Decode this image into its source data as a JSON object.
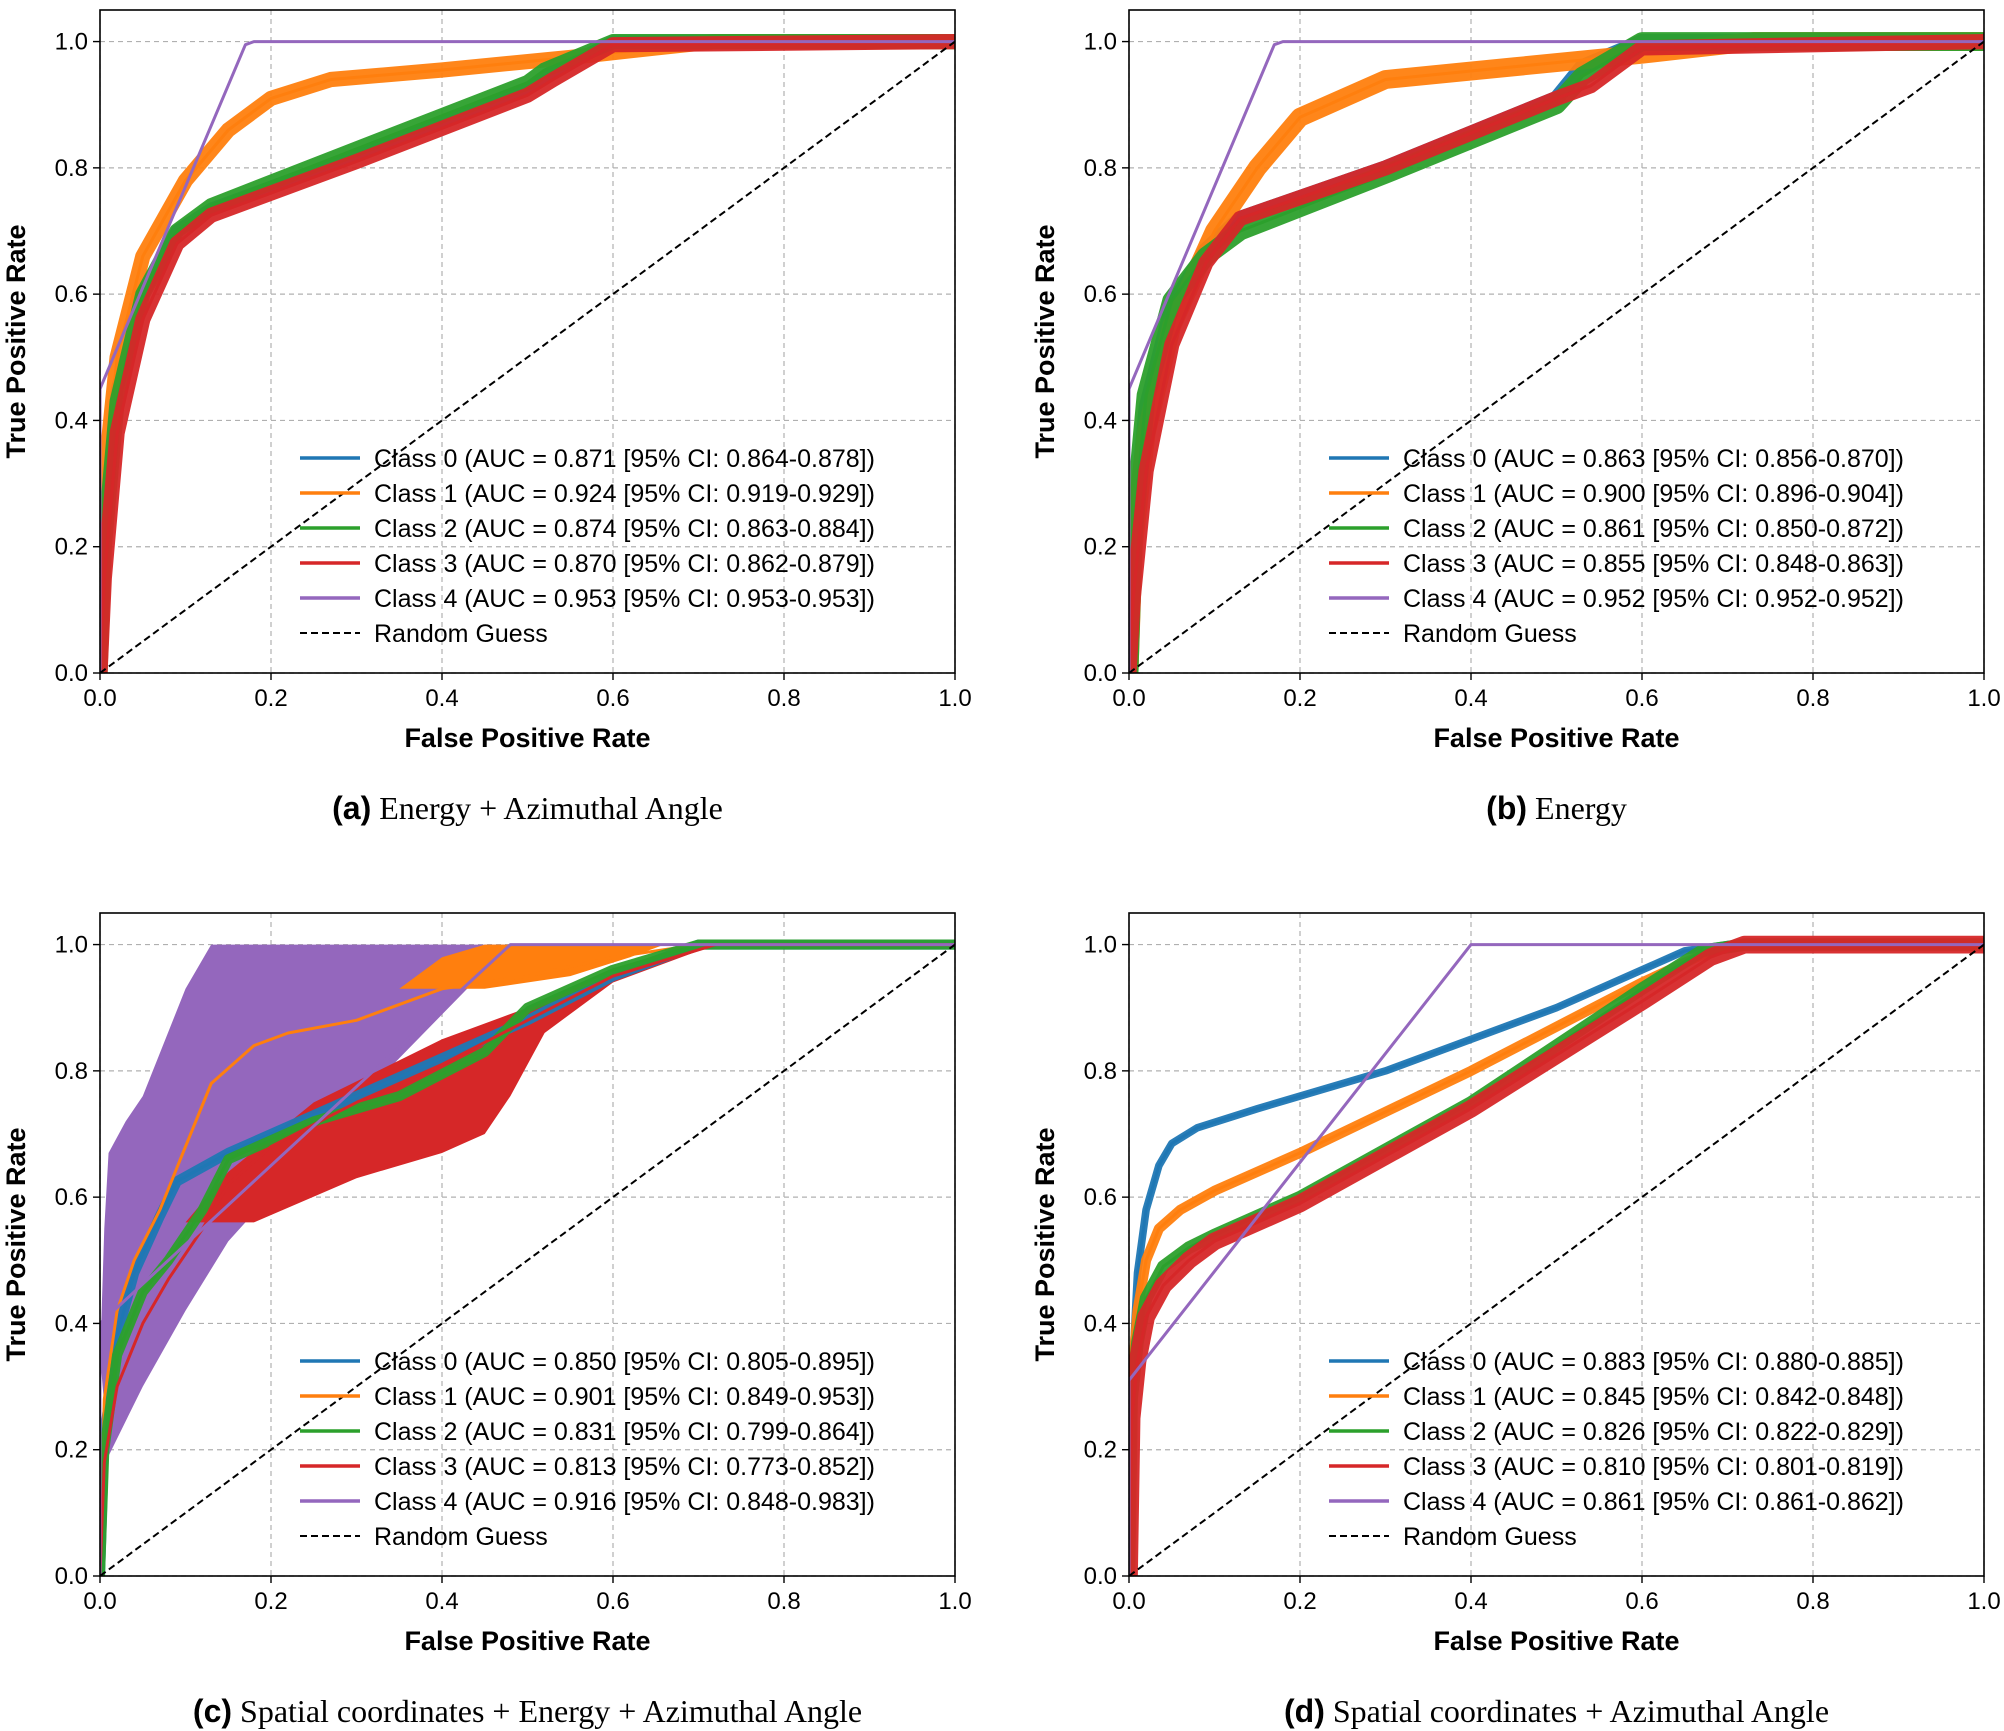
{
  "figure": {
    "x_label": "False Positive Rate",
    "y_label": "True Positive Rate",
    "random_label": "Random Guess"
  },
  "colors": {
    "class_0": "#1f77b4",
    "class_1": "#ff7f0e",
    "class_2": "#2ca02c",
    "class_3": "#d62728",
    "class_4": "#9467bd",
    "random": "#000000"
  },
  "chart_data": [
    {
      "type": "line",
      "caption_letter": "(a)",
      "caption_text": "Energy + Azimuthal Angle",
      "xlabel": "False Positive Rate",
      "ylabel": "True Positive Rate",
      "xlim": [
        0,
        1
      ],
      "ylim": [
        0,
        1.05
      ],
      "xticks": [
        "0.0",
        "0.2",
        "0.4",
        "0.6",
        "0.8",
        "1.0"
      ],
      "yticks": [
        "0.0",
        "0.2",
        "0.4",
        "0.6",
        "0.8",
        "1.0"
      ],
      "grid": true,
      "legend_position": "lower-right",
      "series": [
        {
          "name": "Class 0 (AUC = 0.871 [95% CI: 0.864-0.878])",
          "band": 0.01,
          "x": [
            0,
            0.005,
            0.02,
            0.05,
            0.09,
            0.13,
            0.3,
            0.5,
            0.52,
            0.6,
            1.0
          ],
          "y": [
            0,
            0.22,
            0.45,
            0.6,
            0.7,
            0.735,
            0.82,
            0.925,
            0.945,
            1.0,
            1.0
          ]
        },
        {
          "name": "Class 1 (AUC = 0.924 [95% CI: 0.919-0.929])",
          "band": 0.012,
          "x": [
            0,
            0.005,
            0.02,
            0.05,
            0.1,
            0.15,
            0.2,
            0.27,
            0.4,
            0.55,
            0.65,
            0.72,
            1.0
          ],
          "y": [
            0,
            0.3,
            0.5,
            0.66,
            0.78,
            0.86,
            0.91,
            0.94,
            0.955,
            0.975,
            0.99,
            1.0,
            1.0
          ]
        },
        {
          "name": "Class 2 (AUC = 0.874 [95% CI: 0.863-0.884])",
          "band": 0.012,
          "x": [
            0,
            0.005,
            0.02,
            0.05,
            0.09,
            0.13,
            0.3,
            0.5,
            0.52,
            0.6,
            1.0
          ],
          "y": [
            0,
            0.2,
            0.43,
            0.6,
            0.7,
            0.74,
            0.83,
            0.935,
            0.955,
            1.0,
            1.0
          ]
        },
        {
          "name": "Class 3 (AUC = 0.870 [95% CI: 0.862-0.879])",
          "band": 0.012,
          "x": [
            0,
            0.005,
            0.02,
            0.05,
            0.09,
            0.13,
            0.3,
            0.5,
            0.53,
            0.6,
            1.0
          ],
          "y": [
            0,
            0.15,
            0.38,
            0.56,
            0.68,
            0.725,
            0.81,
            0.915,
            0.94,
            0.995,
            1.0
          ]
        },
        {
          "name": "Class 4 (AUC = 0.953 [95% CI: 0.953-0.953])",
          "band": 0,
          "x": [
            0,
            0,
            0.17,
            0.18,
            1.0
          ],
          "y": [
            0,
            0.45,
            0.995,
            1.0,
            1.0
          ]
        }
      ]
    },
    {
      "type": "line",
      "caption_letter": "(b)",
      "caption_text": "Energy",
      "xlabel": "False Positive Rate",
      "ylabel": "True Positive Rate",
      "xlim": [
        0,
        1
      ],
      "ylim": [
        0,
        1.05
      ],
      "xticks": [
        "0.0",
        "0.2",
        "0.4",
        "0.6",
        "0.8",
        "1.0"
      ],
      "yticks": [
        "0.0",
        "0.2",
        "0.4",
        "0.6",
        "0.8",
        "1.0"
      ],
      "grid": true,
      "legend_position": "lower-right",
      "series": [
        {
          "name": "Class 0 (AUC = 0.863 [95% CI: 0.856-0.870])",
          "band": 0.012,
          "x": [
            0,
            0.005,
            0.02,
            0.05,
            0.09,
            0.13,
            0.3,
            0.5,
            0.53,
            0.6,
            1.0
          ],
          "y": [
            0,
            0.2,
            0.42,
            0.58,
            0.67,
            0.72,
            0.8,
            0.91,
            0.96,
            1.0,
            1.0
          ]
        },
        {
          "name": "Class 1 (AUC = 0.900 [95% CI: 0.896-0.904])",
          "band": 0.015,
          "x": [
            0,
            0.005,
            0.02,
            0.05,
            0.1,
            0.15,
            0.2,
            0.3,
            0.45,
            0.6,
            0.73,
            1.0
          ],
          "y": [
            0,
            0.2,
            0.38,
            0.55,
            0.7,
            0.8,
            0.88,
            0.94,
            0.96,
            0.98,
            1.0,
            1.0
          ]
        },
        {
          "name": "Class 2 (AUC = 0.861 [95% CI: 0.850-0.872])",
          "band": 0.015,
          "x": [
            0,
            0.005,
            0.02,
            0.05,
            0.09,
            0.13,
            0.3,
            0.5,
            0.53,
            0.6,
            1.0
          ],
          "y": [
            0,
            0.22,
            0.44,
            0.59,
            0.66,
            0.7,
            0.79,
            0.9,
            0.945,
            1.0,
            1.0
          ]
        },
        {
          "name": "Class 3 (AUC = 0.855 [95% CI: 0.848-0.863])",
          "band": 0.012,
          "x": [
            0,
            0.005,
            0.02,
            0.05,
            0.09,
            0.13,
            0.3,
            0.5,
            0.54,
            0.6,
            1.0
          ],
          "y": [
            0,
            0.12,
            0.32,
            0.52,
            0.65,
            0.72,
            0.8,
            0.91,
            0.93,
            0.99,
            1.0
          ]
        },
        {
          "name": "Class 4 (AUC = 0.952 [95% CI: 0.952-0.952])",
          "band": 0,
          "x": [
            0,
            0,
            0.17,
            0.18,
            1.0
          ],
          "y": [
            0,
            0.45,
            0.995,
            1.0,
            1.0
          ]
        }
      ]
    },
    {
      "type": "line",
      "caption_letter": "(c)",
      "caption_text": "Spatial coordinates + Energy + Azimuthal Angle",
      "xlabel": "False Positive Rate",
      "ylabel": "True Positive Rate",
      "xlim": [
        0,
        1
      ],
      "ylim": [
        0,
        1.05
      ],
      "xticks": [
        "0.0",
        "0.2",
        "0.4",
        "0.6",
        "0.8",
        "1.0"
      ],
      "yticks": [
        "0.0",
        "0.2",
        "0.4",
        "0.6",
        "0.8",
        "1.0"
      ],
      "grid": true,
      "legend_position": "lower-right",
      "band_order": [
        4,
        3,
        1,
        0,
        2
      ],
      "series": [
        {
          "name": "Class 0 (AUC = 0.850 [95% CI: 0.805-0.895])",
          "band": 0.008,
          "x": [
            0,
            0.005,
            0.02,
            0.04,
            0.07,
            0.09,
            0.15,
            0.25,
            0.4,
            0.5,
            0.6,
            0.7,
            1.0
          ],
          "y": [
            0,
            0.22,
            0.38,
            0.48,
            0.57,
            0.625,
            0.67,
            0.73,
            0.82,
            0.88,
            0.95,
            1.0,
            1.0
          ]
        },
        {
          "name": "Class 1 (AUC = 0.901 [95% CI: 0.849-0.953])",
          "band": 0,
          "x": [
            0,
            0.005,
            0.02,
            0.04,
            0.07,
            0.1,
            0.13,
            0.18,
            0.22,
            0.3,
            0.4,
            0.5,
            0.6,
            0.7,
            1.0
          ],
          "y": [
            0,
            0.28,
            0.42,
            0.5,
            0.58,
            0.68,
            0.78,
            0.84,
            0.86,
            0.88,
            0.93,
            0.95,
            0.98,
            1.0,
            1.0
          ]
        },
        {
          "name": "Class 2 (AUC = 0.831 [95% CI: 0.799-0.864])",
          "band": 0.008,
          "x": [
            0,
            0.005,
            0.02,
            0.05,
            0.08,
            0.12,
            0.15,
            0.25,
            0.35,
            0.45,
            0.5,
            0.6,
            0.7,
            1.0
          ],
          "y": [
            0,
            0.2,
            0.35,
            0.45,
            0.5,
            0.58,
            0.66,
            0.72,
            0.76,
            0.83,
            0.9,
            0.96,
            1.0,
            1.0
          ]
        },
        {
          "name": "Class 3 (AUC = 0.813 [95% CI: 0.773-0.852])",
          "band": 0,
          "x": [
            0,
            0.005,
            0.02,
            0.05,
            0.08,
            0.12,
            0.15,
            0.2,
            0.3,
            0.4,
            0.5,
            0.6,
            0.72,
            1.0
          ],
          "y": [
            0,
            0.18,
            0.3,
            0.4,
            0.47,
            0.55,
            0.62,
            0.68,
            0.75,
            0.81,
            0.88,
            0.95,
            1.0,
            1.0
          ]
        },
        {
          "name": "Class 4 (AUC = 0.916 [95% CI: 0.848-0.983])",
          "band": 0,
          "x": [
            0,
            0.0,
            0.48,
            1.0
          ],
          "y": [
            0,
            0.4,
            1.0,
            1.0
          ]
        }
      ],
      "bands": [
        {
          "series": 4,
          "upper_x": [
            0,
            0.005,
            0.01,
            0.03,
            0.05,
            0.1,
            0.13,
            1.0
          ],
          "upper_y": [
            0.34,
            0.55,
            0.67,
            0.72,
            0.76,
            0.93,
            1.0,
            1.0
          ],
          "lower_x": [
            0,
            0.01,
            0.05,
            0.1,
            0.15,
            0.25,
            0.35,
            0.48,
            1.0
          ],
          "lower_y": [
            0.35,
            0.19,
            0.3,
            0.42,
            0.53,
            0.68,
            0.82,
            1.0,
            1.0
          ]
        },
        {
          "series": 3,
          "upper_x": [
            0.1,
            0.15,
            0.25,
            0.4,
            0.5,
            0.55,
            0.65,
            0.72
          ],
          "upper_y": [
            0.56,
            0.64,
            0.75,
            0.85,
            0.9,
            0.93,
            0.98,
            1.0
          ],
          "lower_x": [
            0.1,
            0.18,
            0.3,
            0.4,
            0.45,
            0.48,
            0.52,
            0.6,
            0.7,
            0.72
          ],
          "lower_y": [
            0.56,
            0.56,
            0.63,
            0.67,
            0.7,
            0.76,
            0.86,
            0.94,
            0.99,
            1.0
          ]
        },
        {
          "series": 1,
          "upper_x": [
            0.35,
            0.4,
            0.45,
            0.55,
            0.66
          ],
          "upper_y": [
            0.93,
            0.98,
            1.0,
            1.0,
            1.0
          ],
          "lower_x": [
            0.35,
            0.45,
            0.55,
            0.62,
            0.66
          ],
          "lower_y": [
            0.93,
            0.93,
            0.95,
            0.98,
            1.0
          ]
        }
      ]
    },
    {
      "type": "line",
      "caption_letter": "(d)",
      "caption_text": "Spatial coordinates + Azimuthal Angle",
      "xlabel": "False Positive Rate",
      "ylabel": "True Positive Rate",
      "xlim": [
        0,
        1
      ],
      "ylim": [
        0,
        1.05
      ],
      "xticks": [
        "0.0",
        "0.2",
        "0.4",
        "0.6",
        "0.8",
        "1.0"
      ],
      "yticks": [
        "0.0",
        "0.2",
        "0.4",
        "0.6",
        "0.8",
        "1.0"
      ],
      "grid": true,
      "legend_position": "lower-right",
      "series": [
        {
          "name": "Class 0 (AUC = 0.883 [95% CI: 0.880-0.885])",
          "band": 0.006,
          "x": [
            0,
            0.003,
            0.01,
            0.02,
            0.035,
            0.05,
            0.08,
            0.15,
            0.3,
            0.5,
            0.65,
            0.7,
            1.0
          ],
          "y": [
            0,
            0.3,
            0.48,
            0.58,
            0.65,
            0.685,
            0.71,
            0.74,
            0.8,
            0.9,
            0.99,
            1.0,
            1.0
          ]
        },
        {
          "name": "Class 1 (AUC = 0.845 [95% CI: 0.842-0.848])",
          "band": 0.008,
          "x": [
            0,
            0.003,
            0.01,
            0.02,
            0.035,
            0.06,
            0.1,
            0.2,
            0.4,
            0.6,
            0.68,
            0.72,
            1.0
          ],
          "y": [
            0,
            0.3,
            0.42,
            0.5,
            0.55,
            0.58,
            0.61,
            0.67,
            0.8,
            0.94,
            0.99,
            1.0,
            1.0
          ]
        },
        {
          "name": "Class 2 (AUC = 0.826 [95% CI: 0.822-0.829])",
          "band": 0.01,
          "x": [
            0,
            0.003,
            0.01,
            0.02,
            0.04,
            0.07,
            0.1,
            0.2,
            0.4,
            0.6,
            0.67,
            0.72,
            1.0
          ],
          "y": [
            0,
            0.28,
            0.37,
            0.44,
            0.49,
            0.52,
            0.54,
            0.6,
            0.75,
            0.93,
            0.99,
            1.0,
            1.0
          ]
        },
        {
          "name": "Class 3 (AUC = 0.810 [95% CI: 0.801-0.819])",
          "band": 0.014,
          "x": [
            0,
            0.003,
            0.01,
            0.02,
            0.04,
            0.07,
            0.1,
            0.2,
            0.4,
            0.6,
            0.68,
            0.72,
            1.0
          ],
          "y": [
            0,
            0.25,
            0.34,
            0.41,
            0.46,
            0.5,
            0.53,
            0.59,
            0.74,
            0.91,
            0.98,
            1.0,
            1.0
          ]
        },
        {
          "name": "Class 4 (AUC = 0.861 [95% CI: 0.861-0.862])",
          "band": 0,
          "x": [
            0,
            0,
            0.4,
            1.0
          ],
          "y": [
            0,
            0.31,
            1.0,
            1.0
          ]
        }
      ]
    }
  ]
}
